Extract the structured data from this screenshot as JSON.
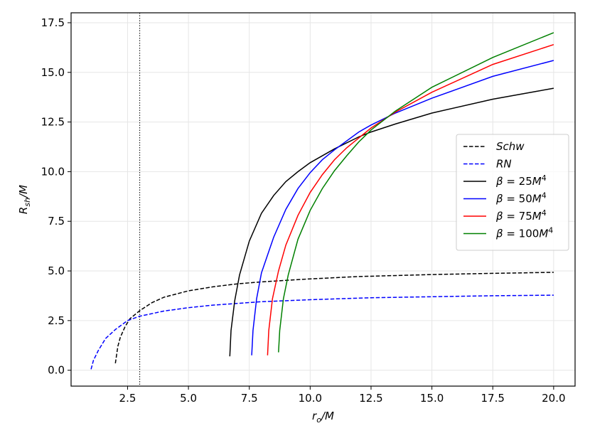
{
  "chart_data": {
    "type": "line",
    "xlabel": "r_o/M",
    "ylabel": "R_sh/M",
    "xlim": [
      0.18,
      20.88
    ],
    "ylim": [
      -0.8,
      18.0
    ],
    "x_ticks": [
      "2.5",
      "5.0",
      "7.5",
      "10.0",
      "12.5",
      "15.0",
      "17.5",
      "20.0"
    ],
    "y_ticks": [
      "0.0",
      "2.5",
      "5.0",
      "7.5",
      "10.0",
      "12.5",
      "15.0",
      "17.5"
    ],
    "grid": true,
    "legend_position": "center-right",
    "vertical_reference_line": {
      "x": 3.0,
      "style": "dotted",
      "color": "#000000"
    },
    "series": [
      {
        "name": "Schw",
        "style": "dashed",
        "color": "#000000",
        "points": [
          [
            2.0,
            0.35
          ],
          [
            2.1,
            1.2
          ],
          [
            2.2,
            1.65
          ],
          [
            2.4,
            2.2
          ],
          [
            2.6,
            2.6
          ],
          [
            3.0,
            3.0
          ],
          [
            3.5,
            3.4
          ],
          [
            4.0,
            3.68
          ],
          [
            5.0,
            4.0
          ],
          [
            6.0,
            4.2
          ],
          [
            7.0,
            4.35
          ],
          [
            8.0,
            4.45
          ],
          [
            10.0,
            4.6
          ],
          [
            12.0,
            4.72
          ],
          [
            15.0,
            4.82
          ],
          [
            17.5,
            4.88
          ],
          [
            20.0,
            4.93
          ]
        ]
      },
      {
        "name": "RN",
        "style": "dashed",
        "color": "#0000ff",
        "points": [
          [
            1.0,
            0.05
          ],
          [
            1.1,
            0.5
          ],
          [
            1.3,
            1.0
          ],
          [
            1.6,
            1.6
          ],
          [
            2.0,
            2.05
          ],
          [
            2.5,
            2.5
          ],
          [
            3.0,
            2.72
          ],
          [
            4.0,
            2.98
          ],
          [
            5.0,
            3.15
          ],
          [
            6.0,
            3.28
          ],
          [
            8.0,
            3.45
          ],
          [
            10.0,
            3.55
          ],
          [
            12.5,
            3.65
          ],
          [
            15.0,
            3.7
          ],
          [
            17.5,
            3.75
          ],
          [
            20.0,
            3.78
          ]
        ]
      },
      {
        "name": "β = 25M⁴",
        "style": "solid",
        "color": "#000000",
        "points": [
          [
            6.7,
            0.7
          ],
          [
            6.75,
            2.0
          ],
          [
            6.9,
            3.5
          ],
          [
            7.1,
            4.8
          ],
          [
            7.5,
            6.5
          ],
          [
            8.0,
            7.9
          ],
          [
            8.5,
            8.8
          ],
          [
            9.0,
            9.5
          ],
          [
            9.5,
            10.0
          ],
          [
            10.0,
            10.45
          ],
          [
            11.0,
            11.15
          ],
          [
            12.0,
            11.75
          ],
          [
            12.5,
            12.0
          ],
          [
            13.5,
            12.4
          ],
          [
            15.0,
            12.95
          ],
          [
            17.5,
            13.65
          ],
          [
            20.0,
            14.2
          ]
        ]
      },
      {
        "name": "β = 50M⁴",
        "style": "solid",
        "color": "#0000ff",
        "points": [
          [
            7.6,
            0.75
          ],
          [
            7.65,
            2.0
          ],
          [
            7.8,
            3.6
          ],
          [
            8.0,
            4.9
          ],
          [
            8.5,
            6.7
          ],
          [
            9.0,
            8.1
          ],
          [
            9.5,
            9.15
          ],
          [
            10.0,
            9.95
          ],
          [
            10.5,
            10.6
          ],
          [
            11.0,
            11.1
          ],
          [
            12.0,
            12.0
          ],
          [
            12.5,
            12.35
          ],
          [
            13.5,
            12.95
          ],
          [
            15.0,
            13.7
          ],
          [
            17.5,
            14.8
          ],
          [
            20.0,
            15.6
          ]
        ]
      },
      {
        "name": "β = 75M⁴",
        "style": "solid",
        "color": "#ff0000",
        "points": [
          [
            8.25,
            0.75
          ],
          [
            8.3,
            2.0
          ],
          [
            8.45,
            3.6
          ],
          [
            8.7,
            5.0
          ],
          [
            9.0,
            6.3
          ],
          [
            9.5,
            7.8
          ],
          [
            10.0,
            8.95
          ],
          [
            10.5,
            9.85
          ],
          [
            11.0,
            10.6
          ],
          [
            11.5,
            11.2
          ],
          [
            12.5,
            12.2
          ],
          [
            13.5,
            13.0
          ],
          [
            15.0,
            14.0
          ],
          [
            17.5,
            15.4
          ],
          [
            20.0,
            16.4
          ]
        ]
      },
      {
        "name": "β = 100M⁴",
        "style": "solid",
        "color": "#008000",
        "points": [
          [
            8.7,
            0.9
          ],
          [
            8.75,
            2.0
          ],
          [
            8.9,
            3.6
          ],
          [
            9.1,
            4.8
          ],
          [
            9.5,
            6.6
          ],
          [
            10.0,
            8.05
          ],
          [
            10.5,
            9.15
          ],
          [
            11.0,
            10.05
          ],
          [
            11.5,
            10.8
          ],
          [
            12.0,
            11.5
          ],
          [
            12.5,
            12.1
          ],
          [
            13.5,
            13.05
          ],
          [
            15.0,
            14.25
          ],
          [
            17.5,
            15.75
          ],
          [
            20.0,
            17.0
          ]
        ]
      }
    ]
  }
}
